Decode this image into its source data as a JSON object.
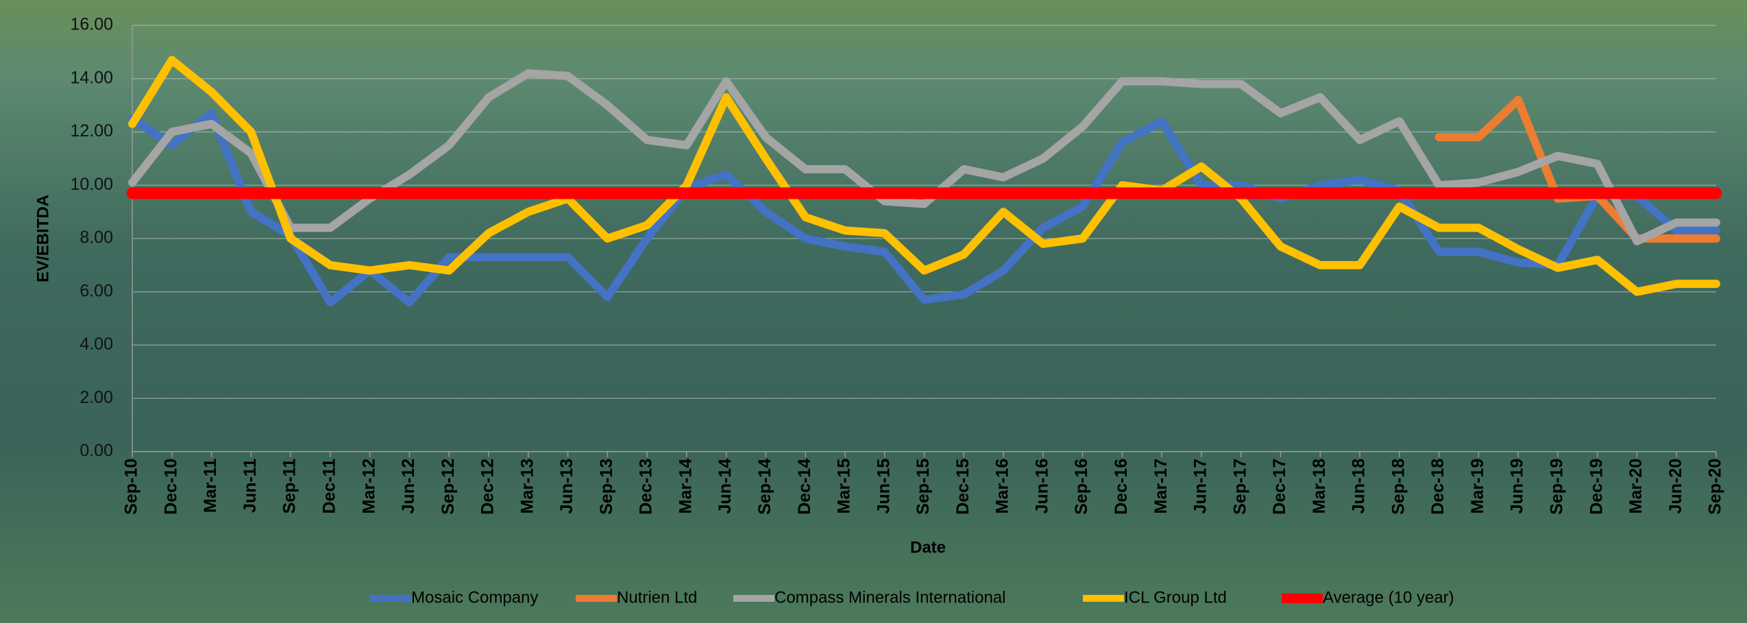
{
  "chart_data": {
    "type": "line",
    "y_label": "EV/EBITDA",
    "x_label": "Date",
    "categories": [
      "Sep-10",
      "Dec-10",
      "Mar-11",
      "Jun-11",
      "Sep-11",
      "Dec-11",
      "Mar-12",
      "Jun-12",
      "Sep-12",
      "Dec-12",
      "Mar-13",
      "Jun-13",
      "Sep-13",
      "Dec-13",
      "Mar-14",
      "Jun-14",
      "Sep-14",
      "Dec-14",
      "Mar-15",
      "Jun-15",
      "Sep-15",
      "Dec-15",
      "Mar-16",
      "Jun-16",
      "Sep-16",
      "Dec-16",
      "Mar-17",
      "Jun-17",
      "Sep-17",
      "Dec-17",
      "Mar-18",
      "Jun-18",
      "Sep-18",
      "Dec-18",
      "Mar-19",
      "Jun-19",
      "Sep-19",
      "Dec-19",
      "Mar-20",
      "Jun-20",
      "Sep-20"
    ],
    "series": [
      {
        "name": "Mosaic Company",
        "color": "#4472c4",
        "values": [
          12.5,
          11.5,
          12.7,
          9.0,
          8.1,
          5.6,
          6.8,
          5.6,
          7.3,
          7.3,
          7.3,
          7.3,
          5.8,
          8.0,
          9.9,
          10.4,
          9.0,
          8.0,
          7.7,
          7.5,
          5.7,
          5.9,
          6.8,
          8.4,
          9.2,
          11.6,
          12.4,
          10.0,
          10.0,
          9.5,
          10.0,
          10.2,
          9.8,
          7.5,
          7.5,
          7.1,
          7.0,
          9.6,
          9.6,
          8.3,
          8.3
        ]
      },
      {
        "name": "Nutrien Ltd",
        "color": "#ed7d31",
        "values": [
          null,
          null,
          null,
          null,
          null,
          null,
          null,
          null,
          null,
          null,
          null,
          null,
          null,
          null,
          null,
          null,
          null,
          null,
          null,
          null,
          null,
          null,
          null,
          null,
          null,
          null,
          null,
          null,
          null,
          null,
          null,
          null,
          null,
          11.8,
          11.8,
          13.2,
          9.5,
          9.6,
          8.0,
          8.0,
          8.0
        ]
      },
      {
        "name": "Compass Minerals International",
        "color": "#a5a5a5",
        "values": [
          10.1,
          12.0,
          12.3,
          11.2,
          8.4,
          8.4,
          9.5,
          10.4,
          11.5,
          13.3,
          14.2,
          14.1,
          13.0,
          11.7,
          11.5,
          13.9,
          11.8,
          10.6,
          10.6,
          9.4,
          9.3,
          10.6,
          10.3,
          11.0,
          12.2,
          13.9,
          13.9,
          13.8,
          13.8,
          12.7,
          13.3,
          11.7,
          12.4,
          10.0,
          10.1,
          10.5,
          11.1,
          10.8,
          7.9,
          8.6,
          8.6
        ]
      },
      {
        "name": "ICL Group Ltd",
        "color": "#ffc000",
        "values": [
          12.3,
          14.7,
          13.5,
          12.0,
          8.0,
          7.0,
          6.8,
          7.0,
          6.8,
          8.2,
          9.0,
          9.5,
          8.0,
          8.5,
          10.0,
          13.3,
          11.0,
          8.8,
          8.3,
          8.2,
          6.8,
          7.4,
          9.0,
          7.8,
          8.0,
          10.0,
          9.8,
          10.7,
          9.5,
          7.7,
          7.0,
          7.0,
          9.2,
          8.4,
          8.4,
          7.6,
          6.9,
          7.2,
          6.0,
          6.3,
          6.3
        ]
      },
      {
        "name": "Average (10 year)",
        "color": "#ff0000",
        "values": [
          9.7,
          9.7,
          9.7,
          9.7,
          9.7,
          9.7,
          9.7,
          9.7,
          9.7,
          9.7,
          9.7,
          9.7,
          9.7,
          9.7,
          9.7,
          9.7,
          9.7,
          9.7,
          9.7,
          9.7,
          9.7,
          9.7,
          9.7,
          9.7,
          9.7,
          9.7,
          9.7,
          9.7,
          9.7,
          9.7,
          9.7,
          9.7,
          9.7,
          9.7,
          9.7,
          9.7,
          9.7,
          9.7,
          9.7,
          9.7,
          9.7
        ]
      }
    ],
    "ylim": [
      0,
      16
    ],
    "yticks": [
      {
        "value": 0,
        "label": "0.00"
      },
      {
        "value": 2,
        "label": "2.00"
      },
      {
        "value": 4,
        "label": "4.00"
      },
      {
        "value": 6,
        "label": "6.00"
      },
      {
        "value": 8,
        "label": "8.00"
      },
      {
        "value": 10,
        "label": "10.00"
      },
      {
        "value": 12,
        "label": "12.00"
      },
      {
        "value": 14,
        "label": "14.00"
      },
      {
        "value": 16,
        "label": "16.00"
      }
    ],
    "grid": true,
    "legend": "bottom"
  }
}
